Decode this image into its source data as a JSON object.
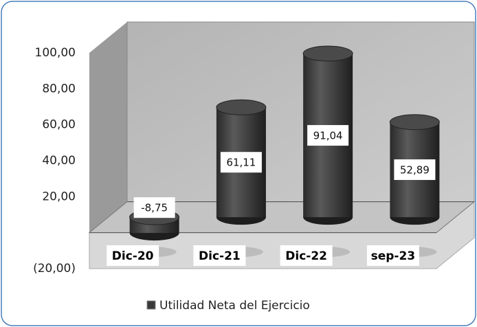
{
  "chart_data": {
    "type": "bar3d",
    "categories": [
      "Dic-20",
      "Dic-21",
      "Dic-22",
      "sep-23"
    ],
    "series": [
      {
        "name": "Utilidad Neta del Ejercicio",
        "color": "#3a3a3a",
        "values": [
          -8.75,
          61.11,
          91.04,
          52.89
        ],
        "value_labels": [
          "-8,75",
          "61,11",
          "91,04",
          "52,89"
        ]
      }
    ],
    "ylim": [
      -20,
      100
    ],
    "yticks": [
      {
        "value": -20,
        "label": "(20,00)"
      },
      {
        "value": 20,
        "label": "20,00"
      },
      {
        "value": 40,
        "label": "40,00"
      },
      {
        "value": 60,
        "label": "60,00"
      },
      {
        "value": 80,
        "label": "80,00"
      },
      {
        "value": 100,
        "label": "100,00"
      }
    ],
    "legend": "bottom"
  }
}
